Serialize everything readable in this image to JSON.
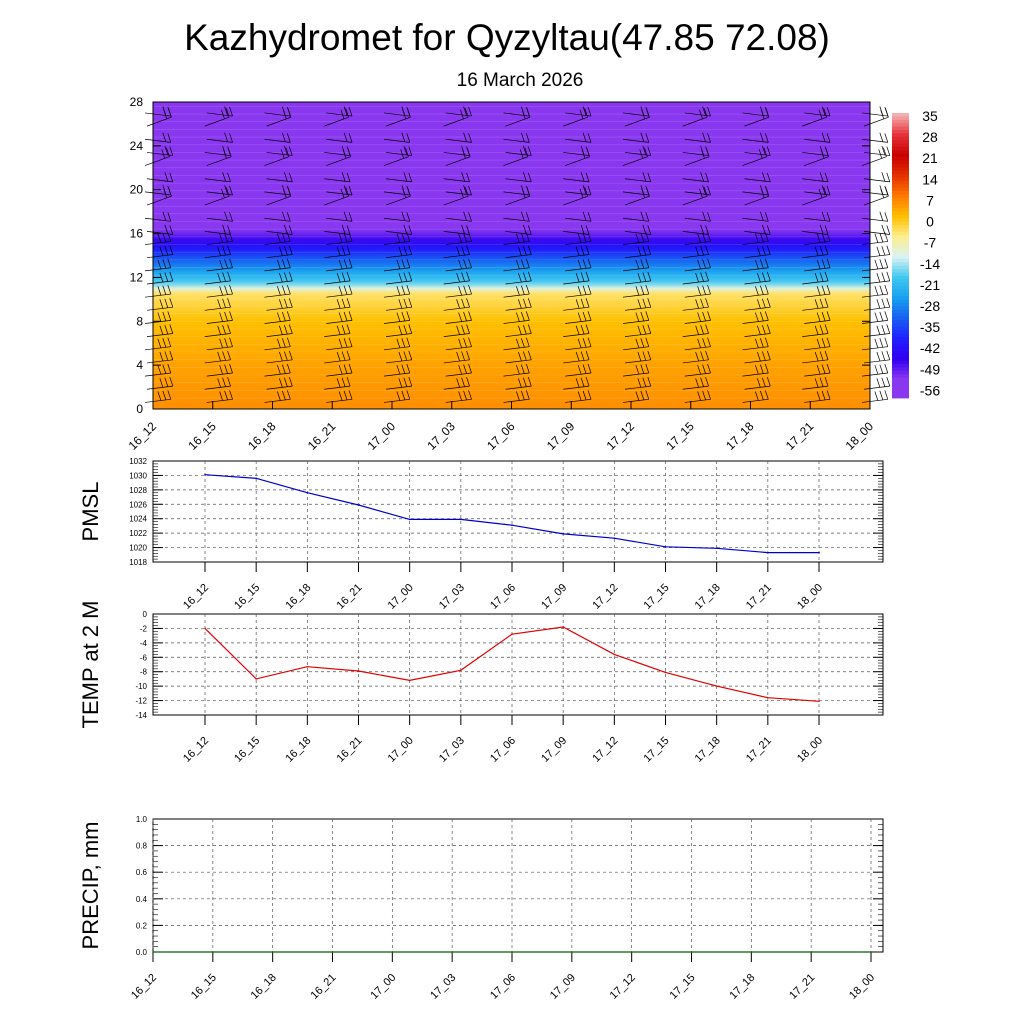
{
  "header": {
    "title": "Kazhydromet for Qyzyltau(47.85 72.08)",
    "subtitle": "16 March 2026"
  },
  "colors": {
    "pmsl_line": "#0000cc",
    "temp_line": "#e00000",
    "precip_line": "#006400",
    "grid": "#555555",
    "barb": "#000000"
  },
  "chart_data": [
    {
      "type": "heatmap",
      "name": "upper-air-cross-section",
      "x": [
        "16_12",
        "16_15",
        "16_18",
        "16_21",
        "17_00",
        "17_03",
        "17_06",
        "17_09",
        "17_12",
        "17_15",
        "17_18",
        "17_21",
        "18_00"
      ],
      "y_ticks": [
        "0",
        "4",
        "8",
        "12",
        "16",
        "20",
        "24",
        "28"
      ],
      "ylim": [
        0,
        28
      ],
      "layers": [
        {
          "z": 0,
          "value": 5
        },
        {
          "z": 4,
          "value": 3
        },
        {
          "z": 8,
          "value": 0
        },
        {
          "z": 10.5,
          "value": -5
        },
        {
          "z": 11.5,
          "value": -20
        },
        {
          "z": 14,
          "value": -38
        },
        {
          "z": 17,
          "value": -62
        },
        {
          "z": 19,
          "value": -58
        },
        {
          "z": 28,
          "value": -56
        }
      ],
      "colorbar": {
        "labels": [
          "35",
          "28",
          "21",
          "14",
          "7",
          "0",
          "-7",
          "-14",
          "-21",
          "-28",
          "-35",
          "-42",
          "-49",
          "-56"
        ],
        "colors": [
          "#f3b0b0",
          "#e6303a",
          "#c80000",
          "#e53000",
          "#ff7a00",
          "#ffc000",
          "#ffee90",
          "#d8f2f2",
          "#40c8f0",
          "#18a0f0",
          "#1860f0",
          "#2020ff",
          "#3000f0",
          "#8a38f0"
        ]
      },
      "wind_barbs": true
    },
    {
      "type": "line",
      "name": "PMSL",
      "ylabel": "PMSL",
      "x": [
        "16_12",
        "16_15",
        "16_18",
        "16_21",
        "17_00",
        "17_03",
        "17_06",
        "17_09",
        "17_12",
        "17_15",
        "17_18",
        "17_21",
        "18_00"
      ],
      "values": [
        1030.1,
        1029.6,
        1027.6,
        1025.9,
        1023.9,
        1023.9,
        1023.1,
        1021.9,
        1021.3,
        1020.1,
        1019.9,
        1019.3,
        1019.3
      ],
      "ylim": [
        1018,
        1032
      ],
      "y_ticks": [
        "1018",
        "1020",
        "1022",
        "1024",
        "1026",
        "1028",
        "1030",
        "1032"
      ],
      "grid": true
    },
    {
      "type": "line",
      "name": "TEMP at 2 M",
      "ylabel": "TEMP at 2 M",
      "x": [
        "16_12",
        "16_15",
        "16_18",
        "16_21",
        "17_00",
        "17_03",
        "17_06",
        "17_09",
        "17_12",
        "17_15",
        "17_18",
        "17_21",
        "18_00"
      ],
      "values": [
        -2.0,
        -9.0,
        -7.3,
        -7.9,
        -9.2,
        -7.8,
        -2.8,
        -1.8,
        -5.6,
        -8.1,
        -10.0,
        -11.6,
        -12.1
      ],
      "ylim": [
        -14,
        0
      ],
      "y_ticks": [
        "0",
        "-2",
        "-4",
        "-6",
        "-8",
        "-10",
        "-12",
        "-14"
      ],
      "grid": true
    },
    {
      "type": "line",
      "name": "PRECIP, mm",
      "ylabel": "PRECIP, mm",
      "x": [
        "16_12",
        "16_15",
        "16_18",
        "16_21",
        "17_00",
        "17_03",
        "17_06",
        "17_09",
        "17_12",
        "17_15",
        "17_18",
        "17_21",
        "18_00"
      ],
      "values": [
        0,
        0,
        0,
        0,
        0,
        0,
        0,
        0,
        0,
        0,
        0,
        0,
        0
      ],
      "ylim": [
        0,
        1
      ],
      "y_ticks": [
        "0.0",
        "0.2",
        "0.4",
        "0.6",
        "0.8",
        "1.0"
      ],
      "grid": true
    }
  ]
}
